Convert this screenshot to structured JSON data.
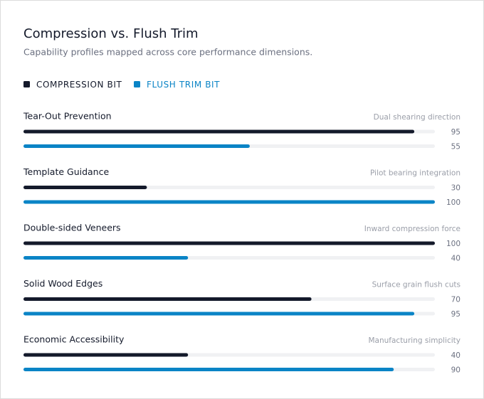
{
  "chart_data": {
    "type": "bar",
    "orientation": "horizontal",
    "title": "Compression vs. Flush Trim",
    "subtitle": "Capability profiles mapped across core performance dimensions.",
    "categories": [
      "Tear-Out Prevention",
      "Template Guidance",
      "Double-sided Veneers",
      "Solid Wood Edges",
      "Economic Accessibility"
    ],
    "annotations": [
      "Dual shearing direction",
      "Pilot bearing integration",
      "Inward compression force",
      "Surface grain flush cuts",
      "Manufacturing simplicity"
    ],
    "series": [
      {
        "name": "COMPRESSION BIT",
        "color": "#141a2b",
        "values": [
          95,
          30,
          100,
          70,
          40
        ]
      },
      {
        "name": "FLUSH TRIM BIT",
        "color": "#0a84c6",
        "values": [
          55,
          100,
          40,
          95,
          90
        ]
      }
    ],
    "xlim": [
      0,
      100
    ],
    "legend": "top-left"
  }
}
